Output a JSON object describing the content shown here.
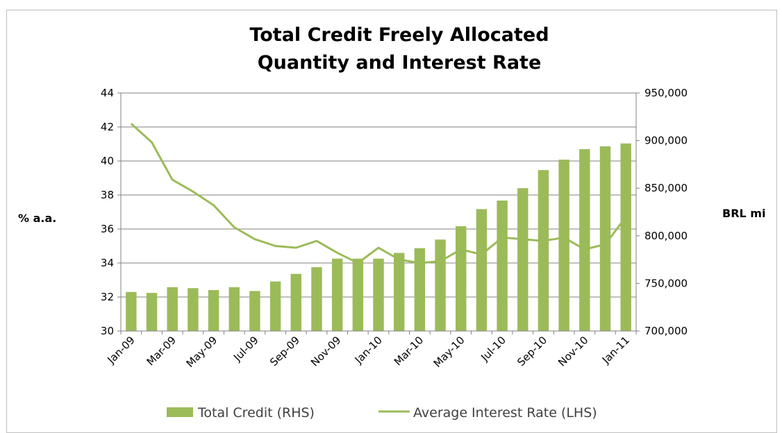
{
  "colors": {
    "bar": "#9bbb59",
    "line": "#9bbb59",
    "grid": "#808080",
    "axis": "#808080"
  },
  "chart_data": {
    "type": "bar+line",
    "title": [
      "Total Credit Freely Allocated",
      "Quantity and Interest Rate"
    ],
    "ylabel_left": "% a.a.",
    "ylabel_right": "BRL mi",
    "x_tick_labels": [
      "Jan-09",
      "Mar-09",
      "May-09",
      "Jul-09",
      "Sep-09",
      "Nov-09",
      "Jan-10",
      "Mar-10",
      "May-10",
      "Jul-10",
      "Sep-10",
      "Nov-10",
      "Jan-11"
    ],
    "y_left": {
      "min": 30,
      "max": 44,
      "step": 2,
      "ticks": [
        "30",
        "32",
        "34",
        "36",
        "38",
        "40",
        "42",
        "44"
      ]
    },
    "y_right": {
      "min": 700000,
      "max": 950000,
      "step": 50000,
      "ticks": [
        "700,000",
        "750,000",
        "800,000",
        "850,000",
        "900,000",
        "950,000"
      ]
    },
    "grid": "horizontal",
    "legend_position": "bottom",
    "categories": [
      "Jan-09",
      "Feb-09",
      "Mar-09",
      "Apr-09",
      "May-09",
      "Jun-09",
      "Jul-09",
      "Aug-09",
      "Sep-09",
      "Oct-09",
      "Nov-09",
      "Dec-09",
      "Jan-10",
      "Feb-10",
      "Mar-10",
      "Apr-10",
      "May-10",
      "Jun-10",
      "Jul-10",
      "Aug-10",
      "Sep-10",
      "Oct-10",
      "Nov-10",
      "Dec-10",
      "Jan-11"
    ],
    "series": [
      {
        "name": "Total Credit (RHS)",
        "type": "bar",
        "axis": "right",
        "values": [
          741000,
          740000,
          746000,
          745000,
          743000,
          746000,
          742000,
          752000,
          760000,
          767000,
          776000,
          776000,
          776000,
          782000,
          787000,
          796000,
          810000,
          828000,
          837000,
          850000,
          869000,
          880000,
          891000,
          894000,
          897000
        ]
      },
      {
        "name": "Average Interest Rate (LHS)",
        "type": "line",
        "axis": "left",
        "values": [
          42.2,
          41.1,
          38.9,
          38.2,
          37.4,
          36.1,
          35.4,
          35.0,
          34.9,
          35.3,
          34.6,
          34.0,
          34.9,
          34.2,
          34.0,
          34.1,
          34.8,
          34.5,
          35.5,
          35.4,
          35.3,
          35.5,
          34.8,
          35.1,
          36.7
        ]
      }
    ]
  }
}
